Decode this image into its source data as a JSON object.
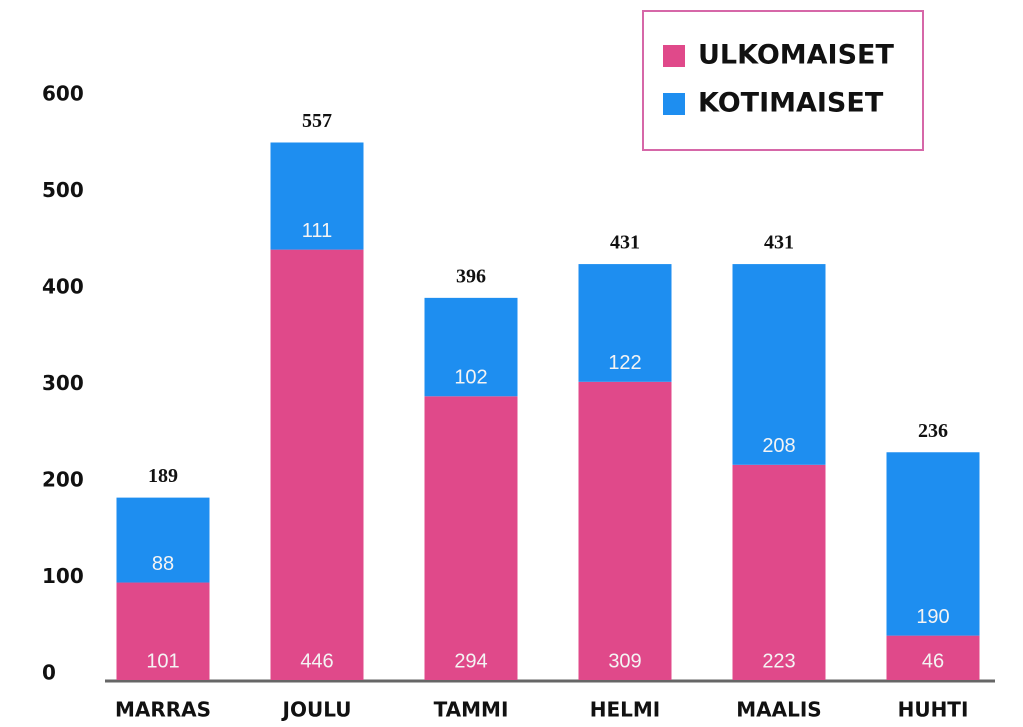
{
  "chart_data": {
    "type": "stacked_bar",
    "categories": [
      "MARRAS",
      "JOULU",
      "TAMMI",
      "HELMI",
      "MAALIS",
      "HUHTI"
    ],
    "series": [
      {
        "name": "ULKOMAISET",
        "color": "#e0498a",
        "values": [
          101,
          446,
          294,
          309,
          223,
          46
        ]
      },
      {
        "name": "KOTIMAISET",
        "color": "#1e8ef0",
        "values": [
          88,
          111,
          102,
          122,
          208,
          190
        ]
      }
    ],
    "totals": [
      189,
      557,
      396,
      431,
      431,
      236
    ],
    "ylim": [
      0,
      600
    ],
    "yticks": [
      0,
      100,
      200,
      300,
      400,
      500,
      600
    ],
    "grid": false,
    "legend": "top-right"
  }
}
